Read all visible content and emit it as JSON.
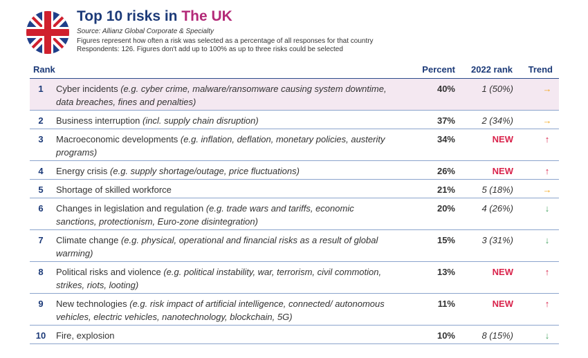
{
  "header": {
    "title_prefix": "Top 10 risks in ",
    "country": "The UK",
    "source": "Source: Allianz Global Corporate & Specialty",
    "note_line1": "Figures represent how often a risk was selected as a percentage of all responses for that country",
    "note_line2": "Respondents: 126. Figures don't add up to 100% as up to three risks could be selected"
  },
  "columns": {
    "rank": "Rank",
    "percent": "Percent",
    "rank_2022": "2022 rank",
    "trend": "Trend"
  },
  "trend_colors": {
    "same": "#f2a516",
    "up": "#d9234b",
    "down": "#4aa564"
  },
  "rows": [
    {
      "rank": "1",
      "main": "Cyber incidents",
      "detail": " (e.g. cyber crime, malware/ransomware causing system downtime, data breaches, fines and penalties)",
      "percent": "40%",
      "rank_2022": "1 (50%)",
      "trend": "→",
      "trend_type": "same"
    },
    {
      "rank": "2",
      "main": "Business interruption",
      "detail": " (incl. supply chain disruption)",
      "percent": "37%",
      "rank_2022": "2 (34%)",
      "trend": "→",
      "trend_type": "same"
    },
    {
      "rank": "3",
      "main": "Macroeconomic developments",
      "detail": " (e.g. inflation, deflation, monetary policies, austerity programs)",
      "percent": "34%",
      "rank_2022": "NEW",
      "trend": "↑",
      "trend_type": "up"
    },
    {
      "rank": "4",
      "main": "Energy crisis",
      "detail": " (e.g. supply shortage/outage, price fluctuations)",
      "percent": "26%",
      "rank_2022": "NEW",
      "trend": "↑",
      "trend_type": "up"
    },
    {
      "rank": "5",
      "main": "Shortage of skilled workforce",
      "detail": "",
      "percent": "21%",
      "rank_2022": "5 (18%)",
      "trend": "→",
      "trend_type": "same"
    },
    {
      "rank": "6",
      "main": "Changes in legislation and regulation",
      "detail": " (e.g. trade wars and tariffs, economic sanctions, protectionism, Euro-zone disintegration)",
      "percent": "20%",
      "rank_2022": "4 (26%)",
      "trend": "↓",
      "trend_type": "down"
    },
    {
      "rank": "7",
      "main": "Climate change",
      "detail": " (e.g. physical, operational and financial risks as a result of global warming)",
      "percent": "15%",
      "rank_2022": "3 (31%)",
      "trend": "↓",
      "trend_type": "down"
    },
    {
      "rank": "8",
      "main": "Political risks and violence",
      "detail": " (e.g. political instability, war, terrorism, civil commotion, strikes, riots, looting)",
      "percent": "13%",
      "rank_2022": "NEW",
      "trend": "↑",
      "trend_type": "up"
    },
    {
      "rank": "9",
      "main": "New technologies",
      "detail": " (e.g. risk impact of artificial intelligence, connected/ autonomous vehicles, electric vehicles, nanotechnology, blockchain, 5G)",
      "percent": "11%",
      "rank_2022": "NEW",
      "trend": "↑",
      "trend_type": "up"
    },
    {
      "rank": "10",
      "main": "Fire, explosion",
      "detail": "",
      "percent": "10%",
      "rank_2022": "8 (15%)",
      "trend": "↓",
      "trend_type": "down"
    }
  ]
}
